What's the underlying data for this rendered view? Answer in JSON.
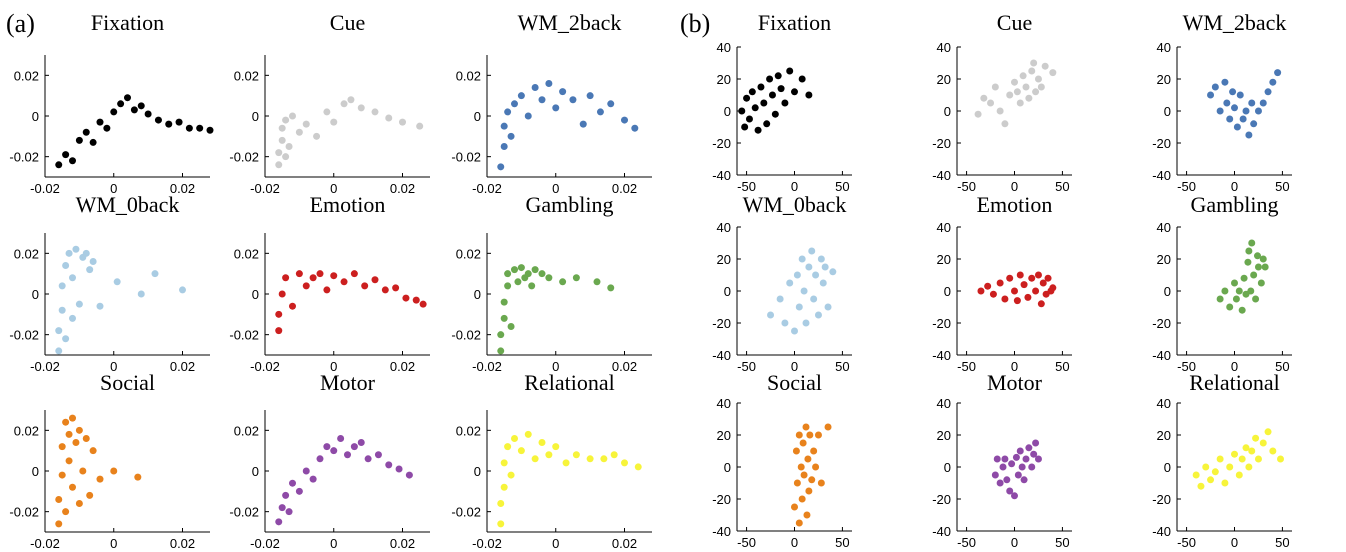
{
  "panel_labels": [
    "(a)",
    "(b)"
  ],
  "chart_data": [
    {
      "type": "scatter",
      "title": "Fixation",
      "color": "#000000",
      "xlim": [
        -0.02,
        0.028
      ],
      "ylim": [
        -0.03,
        0.03
      ],
      "xticks": [
        -0.02,
        0,
        0.02
      ],
      "yticks": [
        -0.02,
        0,
        0.02
      ],
      "x": [
        -0.016,
        -0.014,
        -0.012,
        -0.01,
        -0.008,
        -0.006,
        -0.004,
        -0.002,
        0,
        0.002,
        0.004,
        0.006,
        0.008,
        0.01,
        0.013,
        0.016,
        0.019,
        0.022,
        0.025,
        0.028
      ],
      "values": [
        -0.024,
        -0.019,
        -0.022,
        -0.012,
        -0.008,
        -0.013,
        -0.003,
        -0.006,
        0.002,
        0.006,
        0.009,
        0.003,
        0.005,
        0.001,
        -0.002,
        -0.004,
        -0.003,
        -0.006,
        -0.006,
        -0.007
      ]
    },
    {
      "type": "scatter",
      "title": "Cue",
      "color": "#cccccc",
      "xlim": [
        -0.02,
        0.028
      ],
      "ylim": [
        -0.03,
        0.03
      ],
      "xticks": [
        -0.02,
        0,
        0.02
      ],
      "yticks": [
        -0.02,
        0,
        0.02
      ],
      "x": [
        -0.016,
        -0.016,
        -0.015,
        -0.015,
        -0.014,
        -0.014,
        -0.013,
        -0.012,
        -0.01,
        -0.008,
        -0.005,
        -0.002,
        0,
        0.003,
        0.005,
        0.008,
        0.012,
        0.016,
        0.02,
        0.025
      ],
      "values": [
        -0.024,
        -0.018,
        -0.012,
        -0.006,
        -0.02,
        -0.002,
        -0.015,
        0,
        -0.008,
        -0.004,
        -0.01,
        0.002,
        -0.003,
        0.006,
        0.008,
        0.004,
        0.002,
        -0.001,
        -0.003,
        -0.005
      ]
    },
    {
      "type": "scatter",
      "title": "WM_2back",
      "color": "#4a78b5",
      "xlim": [
        -0.02,
        0.028
      ],
      "ylim": [
        -0.03,
        0.03
      ],
      "xticks": [
        -0.02,
        0,
        0.02
      ],
      "yticks": [
        -0.02,
        0,
        0.02
      ],
      "x": [
        -0.016,
        -0.015,
        -0.015,
        -0.014,
        -0.013,
        -0.012,
        -0.01,
        -0.008,
        -0.006,
        -0.004,
        -0.002,
        0,
        0.002,
        0.005,
        0.008,
        0.01,
        0.013,
        0.016,
        0.02,
        0.023
      ],
      "values": [
        -0.025,
        -0.015,
        -0.005,
        0.002,
        -0.01,
        0.006,
        0.01,
        0.0,
        0.014,
        0.008,
        0.016,
        0.004,
        0.012,
        0.008,
        -0.004,
        0.01,
        0.002,
        0.006,
        -0.002,
        -0.006
      ]
    },
    {
      "type": "scatter",
      "title": "WM_0back",
      "color": "#a9cce3",
      "xlim": [
        -0.02,
        0.028
      ],
      "ylim": [
        -0.03,
        0.03
      ],
      "xticks": [
        -0.02,
        0,
        0.02
      ],
      "yticks": [
        -0.02,
        0,
        0.02
      ],
      "x": [
        -0.016,
        -0.016,
        -0.015,
        -0.015,
        -0.014,
        -0.014,
        -0.013,
        -0.012,
        -0.012,
        -0.011,
        -0.01,
        -0.009,
        -0.008,
        -0.007,
        -0.006,
        -0.004,
        0.001,
        0.008,
        0.012,
        0.02
      ],
      "values": [
        -0.028,
        -0.018,
        -0.008,
        0.004,
        -0.022,
        0.014,
        0.02,
        -0.012,
        0.008,
        0.022,
        -0.005,
        0.018,
        0.02,
        0.012,
        0.016,
        -0.006,
        0.006,
        0.0,
        0.01,
        0.002
      ]
    },
    {
      "type": "scatter",
      "title": "Emotion",
      "color": "#cc1f1f",
      "xlim": [
        -0.02,
        0.028
      ],
      "ylim": [
        -0.03,
        0.03
      ],
      "xticks": [
        -0.02,
        0,
        0.02
      ],
      "yticks": [
        -0.02,
        0,
        0.02
      ],
      "x": [
        -0.016,
        -0.016,
        -0.015,
        -0.014,
        -0.012,
        -0.01,
        -0.008,
        -0.006,
        -0.004,
        -0.002,
        0,
        0.003,
        0.006,
        0.009,
        0.012,
        0.015,
        0.018,
        0.021,
        0.024,
        0.026
      ],
      "values": [
        -0.018,
        -0.01,
        0.0,
        0.008,
        -0.006,
        0.01,
        0.004,
        0.008,
        0.01,
        0.002,
        0.009,
        0.006,
        0.01,
        0.004,
        0.007,
        0.002,
        0.003,
        -0.002,
        -0.003,
        -0.005
      ]
    },
    {
      "type": "scatter",
      "title": "Gambling",
      "color": "#6aa84f",
      "xlim": [
        -0.02,
        0.028
      ],
      "ylim": [
        -0.03,
        0.03
      ],
      "xticks": [
        -0.02,
        0,
        0.02
      ],
      "yticks": [
        -0.02,
        0,
        0.02
      ],
      "x": [
        -0.016,
        -0.016,
        -0.015,
        -0.015,
        -0.014,
        -0.014,
        -0.013,
        -0.012,
        -0.011,
        -0.01,
        -0.009,
        -0.008,
        -0.007,
        -0.006,
        -0.004,
        -0.002,
        0.002,
        0.006,
        0.012,
        0.016
      ],
      "values": [
        -0.028,
        -0.02,
        -0.012,
        -0.004,
        0.004,
        0.01,
        -0.016,
        0.012,
        0.006,
        0.013,
        0.008,
        0.01,
        0.004,
        0.012,
        0.01,
        0.008,
        0.006,
        0.008,
        0.006,
        0.003
      ]
    },
    {
      "type": "scatter",
      "title": "Social",
      "color": "#e8821c",
      "xlim": [
        -0.02,
        0.028
      ],
      "ylim": [
        -0.03,
        0.03
      ],
      "xticks": [
        -0.02,
        0,
        0.02
      ],
      "yticks": [
        -0.02,
        0,
        0.02
      ],
      "x": [
        -0.016,
        -0.016,
        -0.015,
        -0.015,
        -0.014,
        -0.014,
        -0.013,
        -0.013,
        -0.012,
        -0.012,
        -0.011,
        -0.01,
        -0.01,
        -0.009,
        -0.008,
        -0.007,
        -0.006,
        -0.004,
        0.0,
        0.007
      ],
      "values": [
        -0.026,
        -0.014,
        -0.002,
        0.012,
        0.024,
        -0.02,
        0.018,
        0.005,
        -0.008,
        0.026,
        0.014,
        -0.016,
        0.02,
        0.0,
        0.016,
        -0.012,
        0.01,
        -0.004,
        0.0,
        -0.003
      ]
    },
    {
      "type": "scatter",
      "title": "Motor",
      "color": "#8e4aa7",
      "xlim": [
        -0.02,
        0.028
      ],
      "ylim": [
        -0.03,
        0.03
      ],
      "xticks": [
        -0.02,
        0,
        0.02
      ],
      "yticks": [
        -0.02,
        0,
        0.02
      ],
      "x": [
        -0.016,
        -0.015,
        -0.014,
        -0.013,
        -0.012,
        -0.01,
        -0.008,
        -0.006,
        -0.004,
        -0.002,
        0,
        0.002,
        0.004,
        0.006,
        0.008,
        0.01,
        0.013,
        0.016,
        0.019,
        0.022
      ],
      "values": [
        -0.025,
        -0.018,
        -0.012,
        -0.02,
        -0.006,
        -0.01,
        0.0,
        -0.004,
        0.006,
        0.012,
        0.01,
        0.016,
        0.008,
        0.012,
        0.014,
        0.006,
        0.008,
        0.003,
        0.001,
        -0.002
      ]
    },
    {
      "type": "scatter",
      "title": "Relational",
      "color": "#f7f43a",
      "xlim": [
        -0.02,
        0.028
      ],
      "ylim": [
        -0.03,
        0.03
      ],
      "xticks": [
        -0.02,
        0,
        0.02
      ],
      "yticks": [
        -0.02,
        0,
        0.02
      ],
      "x": [
        -0.016,
        -0.016,
        -0.015,
        -0.015,
        -0.014,
        -0.013,
        -0.012,
        -0.01,
        -0.008,
        -0.006,
        -0.004,
        -0.002,
        0,
        0.003,
        0.006,
        0.01,
        0.014,
        0.017,
        0.02,
        0.024
      ],
      "values": [
        -0.026,
        -0.016,
        -0.008,
        0.004,
        0.012,
        -0.002,
        0.016,
        0.01,
        0.018,
        0.006,
        0.014,
        0.008,
        0.012,
        0.004,
        0.008,
        0.006,
        0.006,
        0.008,
        0.004,
        0.002
      ]
    },
    {
      "type": "scatter",
      "title": "Fixation",
      "color": "#000000",
      "xlim": [
        -60,
        60
      ],
      "ylim": [
        -40,
        40
      ],
      "xticks": [
        -50,
        0,
        50
      ],
      "yticks": [
        -40,
        -20,
        0,
        20,
        40
      ],
      "x": [
        -55,
        -52,
        -50,
        -47,
        -44,
        -41,
        -38,
        -35,
        -32,
        -29,
        -26,
        -23,
        -20,
        -17,
        -14,
        -10,
        -5,
        0,
        8,
        15
      ],
      "values": [
        0,
        -10,
        8,
        -5,
        12,
        2,
        -12,
        15,
        5,
        -8,
        20,
        10,
        -2,
        22,
        14,
        5,
        25,
        12,
        20,
        10
      ]
    },
    {
      "type": "scatter",
      "title": "Cue",
      "color": "#cccccc",
      "xlim": [
        -60,
        60
      ],
      "ylim": [
        -40,
        40
      ],
      "xticks": [
        -50,
        0,
        50
      ],
      "yticks": [
        -40,
        -20,
        0,
        20,
        40
      ],
      "x": [
        -38,
        -32,
        -25,
        -20,
        -15,
        -10,
        -5,
        0,
        3,
        6,
        9,
        12,
        15,
        18,
        20,
        22,
        25,
        28,
        32,
        40
      ],
      "values": [
        -2,
        8,
        5,
        15,
        0,
        -8,
        10,
        18,
        12,
        5,
        22,
        15,
        8,
        25,
        30,
        12,
        20,
        15,
        28,
        24
      ]
    },
    {
      "type": "scatter",
      "title": "WM_2back",
      "color": "#4a78b5",
      "xlim": [
        -60,
        60
      ],
      "ylim": [
        -40,
        40
      ],
      "xticks": [
        -50,
        0,
        50
      ],
      "yticks": [
        -40,
        -20,
        0,
        20,
        40
      ],
      "x": [
        -25,
        -20,
        -15,
        -10,
        -8,
        -5,
        -2,
        0,
        3,
        6,
        9,
        12,
        15,
        18,
        20,
        25,
        30,
        35,
        40,
        45
      ],
      "values": [
        10,
        15,
        0,
        18,
        5,
        -5,
        12,
        2,
        -10,
        10,
        -5,
        0,
        -15,
        5,
        -8,
        0,
        5,
        12,
        18,
        24
      ]
    },
    {
      "type": "scatter",
      "title": "WM_0back",
      "color": "#a9cce3",
      "xlim": [
        -60,
        60
      ],
      "ylim": [
        -40,
        40
      ],
      "xticks": [
        -50,
        0,
        50
      ],
      "yticks": [
        -40,
        -20,
        0,
        20,
        40
      ],
      "x": [
        -25,
        -15,
        -10,
        -5,
        0,
        3,
        5,
        8,
        10,
        12,
        15,
        18,
        20,
        22,
        25,
        28,
        30,
        32,
        35,
        40
      ],
      "values": [
        -15,
        -5,
        -20,
        5,
        -25,
        10,
        -10,
        20,
        0,
        -20,
        15,
        25,
        -5,
        10,
        -15,
        20,
        5,
        15,
        -10,
        12
      ]
    },
    {
      "type": "scatter",
      "title": "Emotion",
      "color": "#cc1f1f",
      "xlim": [
        -60,
        60
      ],
      "ylim": [
        -40,
        40
      ],
      "xticks": [
        -50,
        0,
        50
      ],
      "yticks": [
        -40,
        -20,
        0,
        20,
        40
      ],
      "x": [
        -35,
        -28,
        -22,
        -15,
        -10,
        -5,
        0,
        3,
        6,
        10,
        14,
        18,
        22,
        25,
        28,
        30,
        33,
        35,
        38,
        40
      ],
      "values": [
        0,
        3,
        -2,
        5,
        -5,
        8,
        0,
        -6,
        10,
        4,
        -4,
        8,
        0,
        10,
        -8,
        5,
        -2,
        8,
        0,
        2
      ]
    },
    {
      "type": "scatter",
      "title": "Gambling",
      "color": "#6aa84f",
      "xlim": [
        -60,
        60
      ],
      "ylim": [
        -40,
        40
      ],
      "xticks": [
        -50,
        0,
        50
      ],
      "yticks": [
        -40,
        -20,
        0,
        20,
        40
      ],
      "x": [
        -15,
        -10,
        -5,
        0,
        2,
        5,
        8,
        10,
        12,
        14,
        15,
        17,
        18,
        20,
        22,
        24,
        25,
        28,
        30,
        32
      ],
      "values": [
        -5,
        0,
        -10,
        5,
        -5,
        0,
        -12,
        8,
        -2,
        18,
        25,
        0,
        30,
        10,
        -5,
        22,
        15,
        5,
        20,
        15
      ]
    },
    {
      "type": "scatter",
      "title": "Social",
      "color": "#e8821c",
      "xlim": [
        -60,
        60
      ],
      "ylim": [
        -40,
        40
      ],
      "xticks": [
        -50,
        0,
        50
      ],
      "yticks": [
        -40,
        -20,
        0,
        20,
        40
      ],
      "x": [
        0,
        2,
        3,
        5,
        5,
        7,
        8,
        9,
        10,
        12,
        13,
        14,
        15,
        16,
        18,
        20,
        22,
        25,
        28,
        35
      ],
      "values": [
        -25,
        10,
        -10,
        20,
        -35,
        0,
        -20,
        15,
        -5,
        25,
        -30,
        5,
        -15,
        20,
        -8,
        10,
        0,
        20,
        -10,
        25
      ]
    },
    {
      "type": "scatter",
      "title": "Motor",
      "color": "#8e4aa7",
      "xlim": [
        -60,
        60
      ],
      "ylim": [
        -40,
        40
      ],
      "xticks": [
        -50,
        0,
        50
      ],
      "yticks": [
        -40,
        -20,
        0,
        20,
        40
      ],
      "x": [
        -20,
        -18,
        -15,
        -12,
        -10,
        -8,
        -5,
        -3,
        0,
        2,
        4,
        6,
        8,
        10,
        12,
        15,
        18,
        20,
        22,
        25
      ],
      "values": [
        -5,
        5,
        -10,
        0,
        5,
        -8,
        -15,
        2,
        -18,
        6,
        -5,
        10,
        0,
        -8,
        5,
        12,
        0,
        8,
        15,
        5
      ]
    },
    {
      "type": "scatter",
      "title": "Relational",
      "color": "#f7f43a",
      "xlim": [
        -60,
        60
      ],
      "ylim": [
        -40,
        40
      ],
      "xticks": [
        -50,
        0,
        50
      ],
      "yticks": [
        -40,
        -20,
        0,
        20,
        40
      ],
      "x": [
        -40,
        -35,
        -30,
        -25,
        -20,
        -15,
        -10,
        -5,
        0,
        5,
        8,
        12,
        15,
        18,
        22,
        25,
        30,
        35,
        40,
        48
      ],
      "values": [
        -5,
        -12,
        0,
        -8,
        -3,
        5,
        -10,
        0,
        8,
        -5,
        5,
        12,
        0,
        10,
        18,
        5,
        15,
        22,
        10,
        5
      ]
    }
  ]
}
